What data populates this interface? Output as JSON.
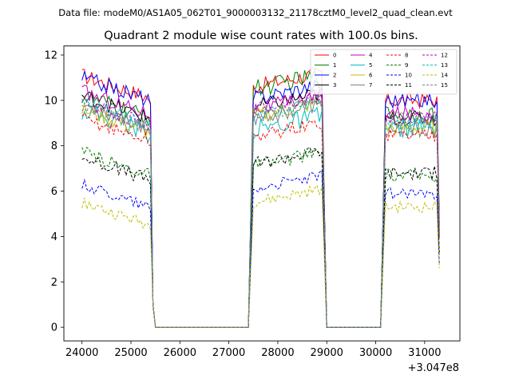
{
  "suptitle": "Data file: modeM0/AS1A05_062T01_9000003132_21178cztM0_level2_quad_clean.evt",
  "chart_data": {
    "type": "line",
    "title": "Quadrant 2 module wise count rates with 100.0s bins.",
    "xlabel": "",
    "ylabel": "",
    "x_offset_label": "+3.047e8",
    "xlim": [
      23630,
      31720
    ],
    "ylim": [
      -0.6,
      12.4
    ],
    "x_ticks": [
      24000,
      25000,
      26000,
      27000,
      28000,
      29000,
      30000,
      31000
    ],
    "x_tick_labels": [
      "24000",
      "25000",
      "26000",
      "27000",
      "28000",
      "29000",
      "30000",
      "31000"
    ],
    "y_ticks": [
      0,
      2,
      4,
      6,
      8,
      10,
      12
    ],
    "y_tick_labels": [
      "0",
      "2",
      "4",
      "6",
      "8",
      "10",
      "12"
    ],
    "grid": false,
    "legend_position": "top-right",
    "series": [
      {
        "name": "0",
        "color": "#ff0000",
        "dash": "solid",
        "level1": 11.1,
        "level2": 10.6,
        "level3": 10.0,
        "amp": 0.35,
        "last": 4.6
      },
      {
        "name": "1",
        "color": "#008000",
        "dash": "solid",
        "level1": 10.2,
        "level2": 10.5,
        "level3": 9.4,
        "amp": 0.4,
        "last": 4.2
      },
      {
        "name": "2",
        "color": "#0000ff",
        "dash": "solid",
        "level1": 11.0,
        "level2": 10.1,
        "level3": 10.0,
        "amp": 0.35,
        "last": 4.8
      },
      {
        "name": "3",
        "color": "#000000",
        "dash": "solid",
        "level1": 10.2,
        "level2": 9.7,
        "level3": 9.2,
        "amp": 0.35,
        "last": 4.5
      },
      {
        "name": "4",
        "color": "#bf00bf",
        "dash": "solid",
        "level1": 10.4,
        "level2": 9.6,
        "level3": 9.4,
        "amp": 0.35,
        "last": 4.4
      },
      {
        "name": "5",
        "color": "#00bfbf",
        "dash": "solid",
        "level1": 9.6,
        "level2": 8.7,
        "level3": 8.8,
        "amp": 0.45,
        "last": 4.0
      },
      {
        "name": "6",
        "color": "#bfbf00",
        "dash": "solid",
        "level1": 9.6,
        "level2": 9.3,
        "level3": 8.8,
        "amp": 0.35,
        "last": 4.1
      },
      {
        "name": "7",
        "color": "#808080",
        "dash": "solid",
        "level1": 9.8,
        "level2": 9.2,
        "level3": 8.7,
        "amp": 0.35,
        "last": 4.0
      },
      {
        "name": "8",
        "color": "#ff0000",
        "dash": "dashed",
        "level1": 9.2,
        "level2": 8.4,
        "level3": 8.5,
        "amp": 0.3,
        "last": 3.9
      },
      {
        "name": "9",
        "color": "#008000",
        "dash": "dashed",
        "level1": 7.7,
        "level2": 7.1,
        "level3": 6.7,
        "amp": 0.3,
        "last": 3.3
      },
      {
        "name": "10",
        "color": "#0000ff",
        "dash": "dashed",
        "level1": 6.3,
        "level2": 6.1,
        "level3": 5.9,
        "amp": 0.25,
        "last": 2.8
      },
      {
        "name": "11",
        "color": "#000000",
        "dash": "dashed",
        "level1": 7.5,
        "level2": 7.2,
        "level3": 6.8,
        "amp": 0.3,
        "last": 3.2
      },
      {
        "name": "12",
        "color": "#bf00bf",
        "dash": "dashed",
        "level1": 9.9,
        "level2": 9.6,
        "level3": 9.2,
        "amp": 0.3,
        "last": 4.2
      },
      {
        "name": "13",
        "color": "#00bfbf",
        "dash": "dashed",
        "level1": 9.9,
        "level2": 9.3,
        "level3": 9.0,
        "amp": 0.3,
        "last": 4.1
      },
      {
        "name": "14",
        "color": "#bfbf00",
        "dash": "dashed",
        "level1": 5.5,
        "level2": 5.5,
        "level3": 5.3,
        "amp": 0.25,
        "last": 2.6
      },
      {
        "name": "15",
        "color": "#808080",
        "dash": "dashed",
        "level1": 9.7,
        "level2": 9.4,
        "level3": 9.2,
        "amp": 0.3,
        "last": 4.1
      }
    ],
    "segments": [
      {
        "start": 24000,
        "end": 25400,
        "step": 50
      },
      {
        "start": 25500,
        "end": 25600,
        "step": 100,
        "zero": true
      },
      {
        "start": 26000,
        "end": 27400,
        "step": 100,
        "zero": true
      },
      {
        "start": 27500,
        "end": 28900,
        "step": 50
      },
      {
        "start": 29000,
        "end": 29100,
        "step": 100,
        "zero": true
      },
      {
        "start": 29500,
        "end": 30100,
        "step": 100,
        "zero": true
      },
      {
        "start": 30200,
        "end": 31300,
        "step": 50
      }
    ]
  }
}
